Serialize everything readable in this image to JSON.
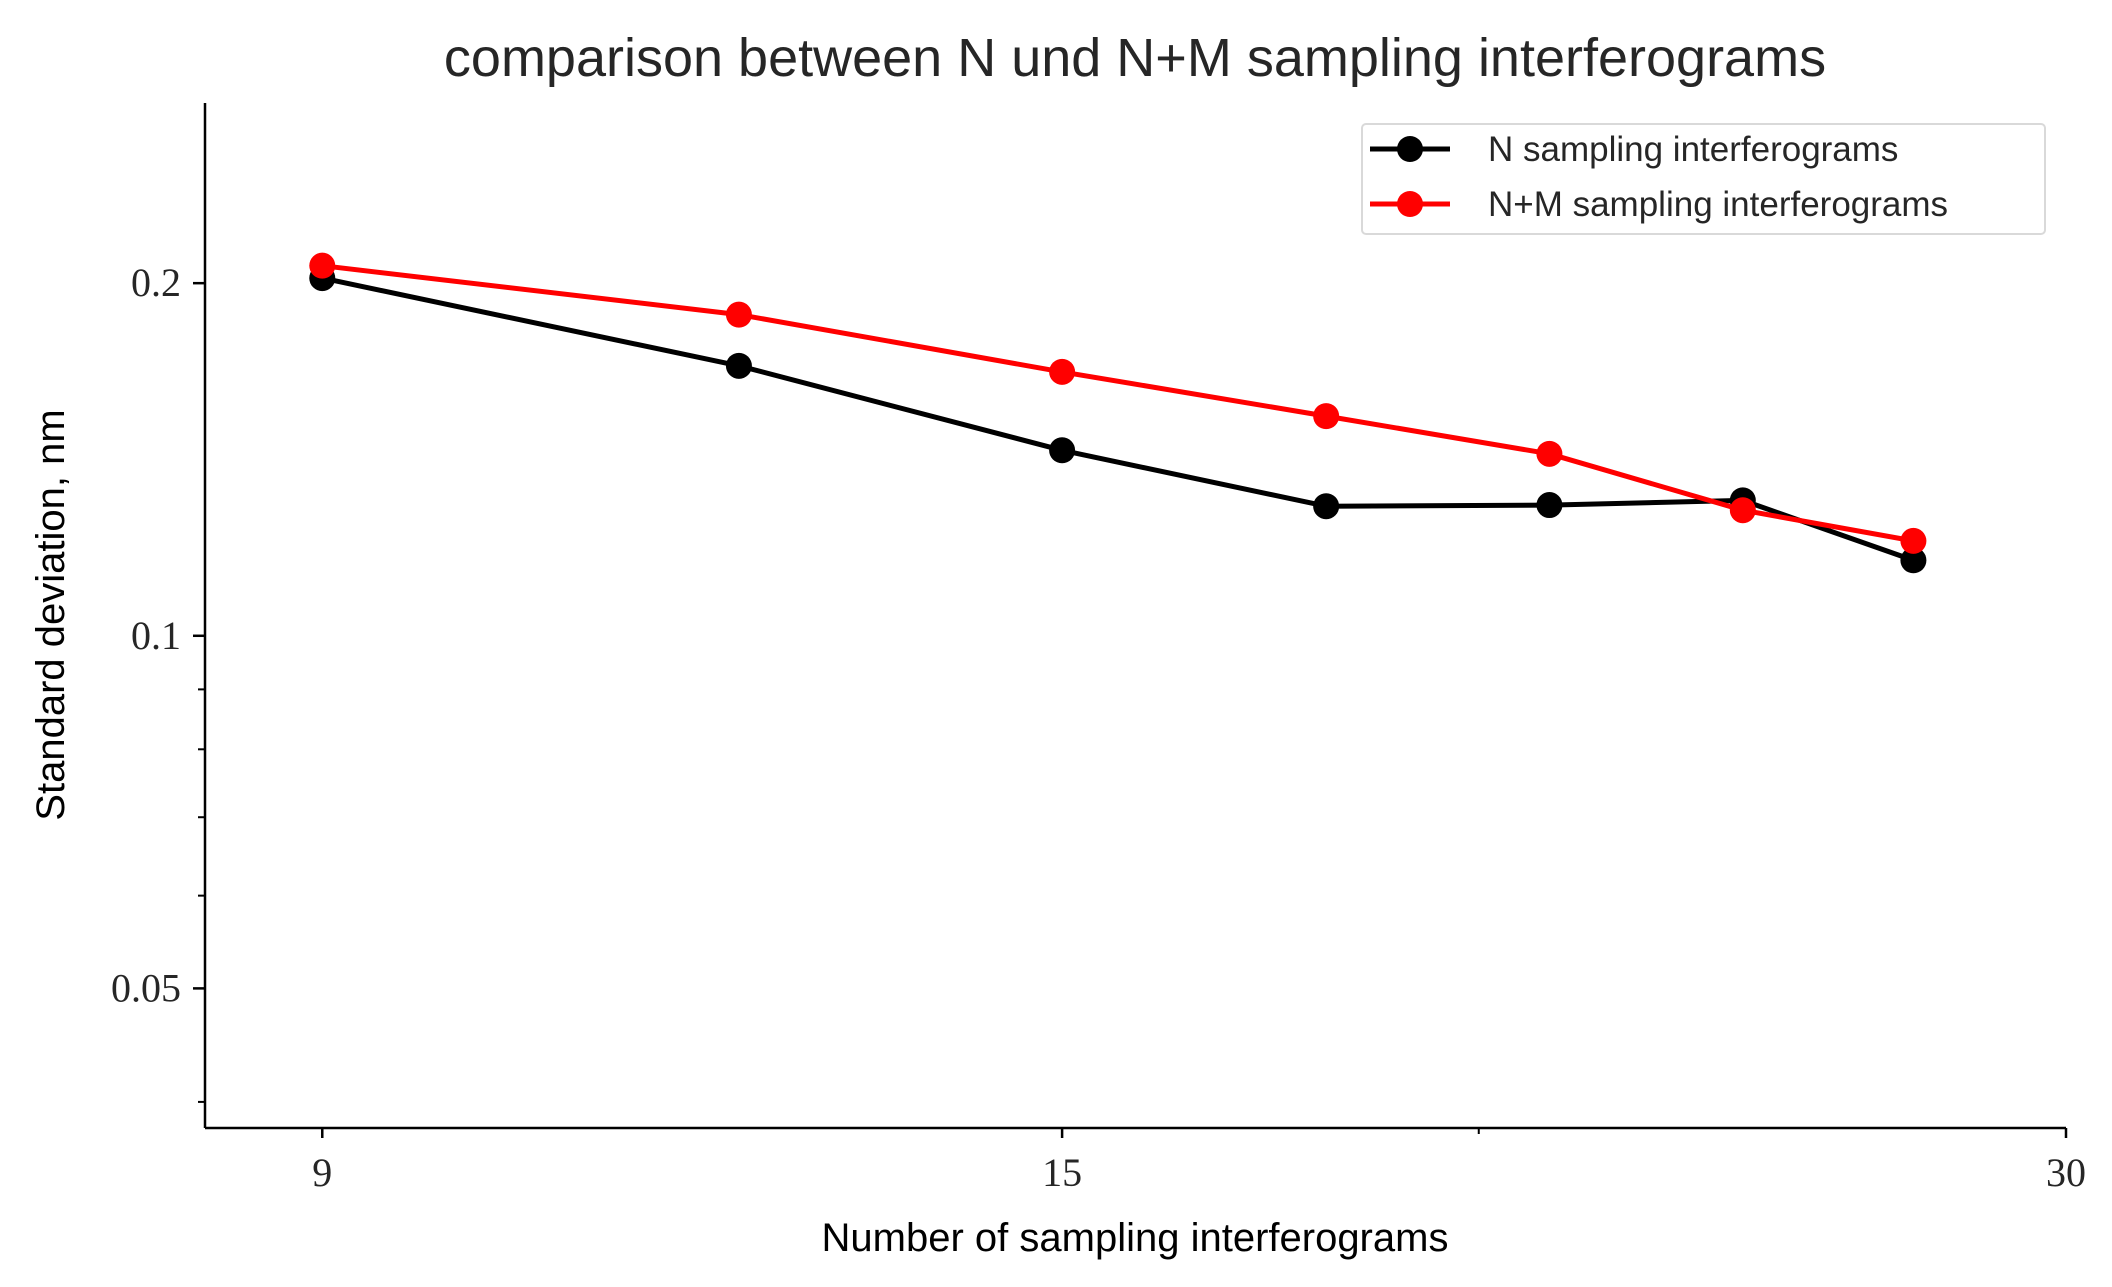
{
  "chart_data": {
    "type": "line",
    "title": "comparison between N und N+M sampling interferograms",
    "xlabel": "Number of sampling interferograms",
    "ylabel": "Standard deviation, nm",
    "xscale": "log",
    "yscale": "log",
    "xlim": [
      8.3,
      30
    ],
    "ylim": [
      0.038,
      0.285
    ],
    "xticks": [
      9,
      15,
      30
    ],
    "xtick_labels": [
      "9",
      "15",
      "30"
    ],
    "x_minor_ticks": [
      8,
      20
    ],
    "yticks": [
      0.05,
      0.1,
      0.2
    ],
    "ytick_labels": [
      "0.05",
      "0.1",
      "0.2"
    ],
    "y_minor_ticks": [
      0.04,
      0.06,
      0.07,
      0.08,
      0.09,
      0.3
    ],
    "grid": false,
    "legend_position": "top-right",
    "series": [
      {
        "name": "N sampling interferograms",
        "color": "#000000",
        "x": [
          9,
          12,
          15,
          18,
          21,
          24,
          27
        ],
        "y": [
          0.202,
          0.17,
          0.144,
          0.129,
          0.1293,
          0.1305,
          0.116
        ]
      },
      {
        "name": "N+M sampling interferograms",
        "color": "#ff0000",
        "x": [
          9,
          12,
          15,
          18,
          21,
          24,
          27
        ],
        "y": [
          0.207,
          0.188,
          0.168,
          0.154,
          0.143,
          0.128,
          0.1205
        ]
      }
    ]
  }
}
